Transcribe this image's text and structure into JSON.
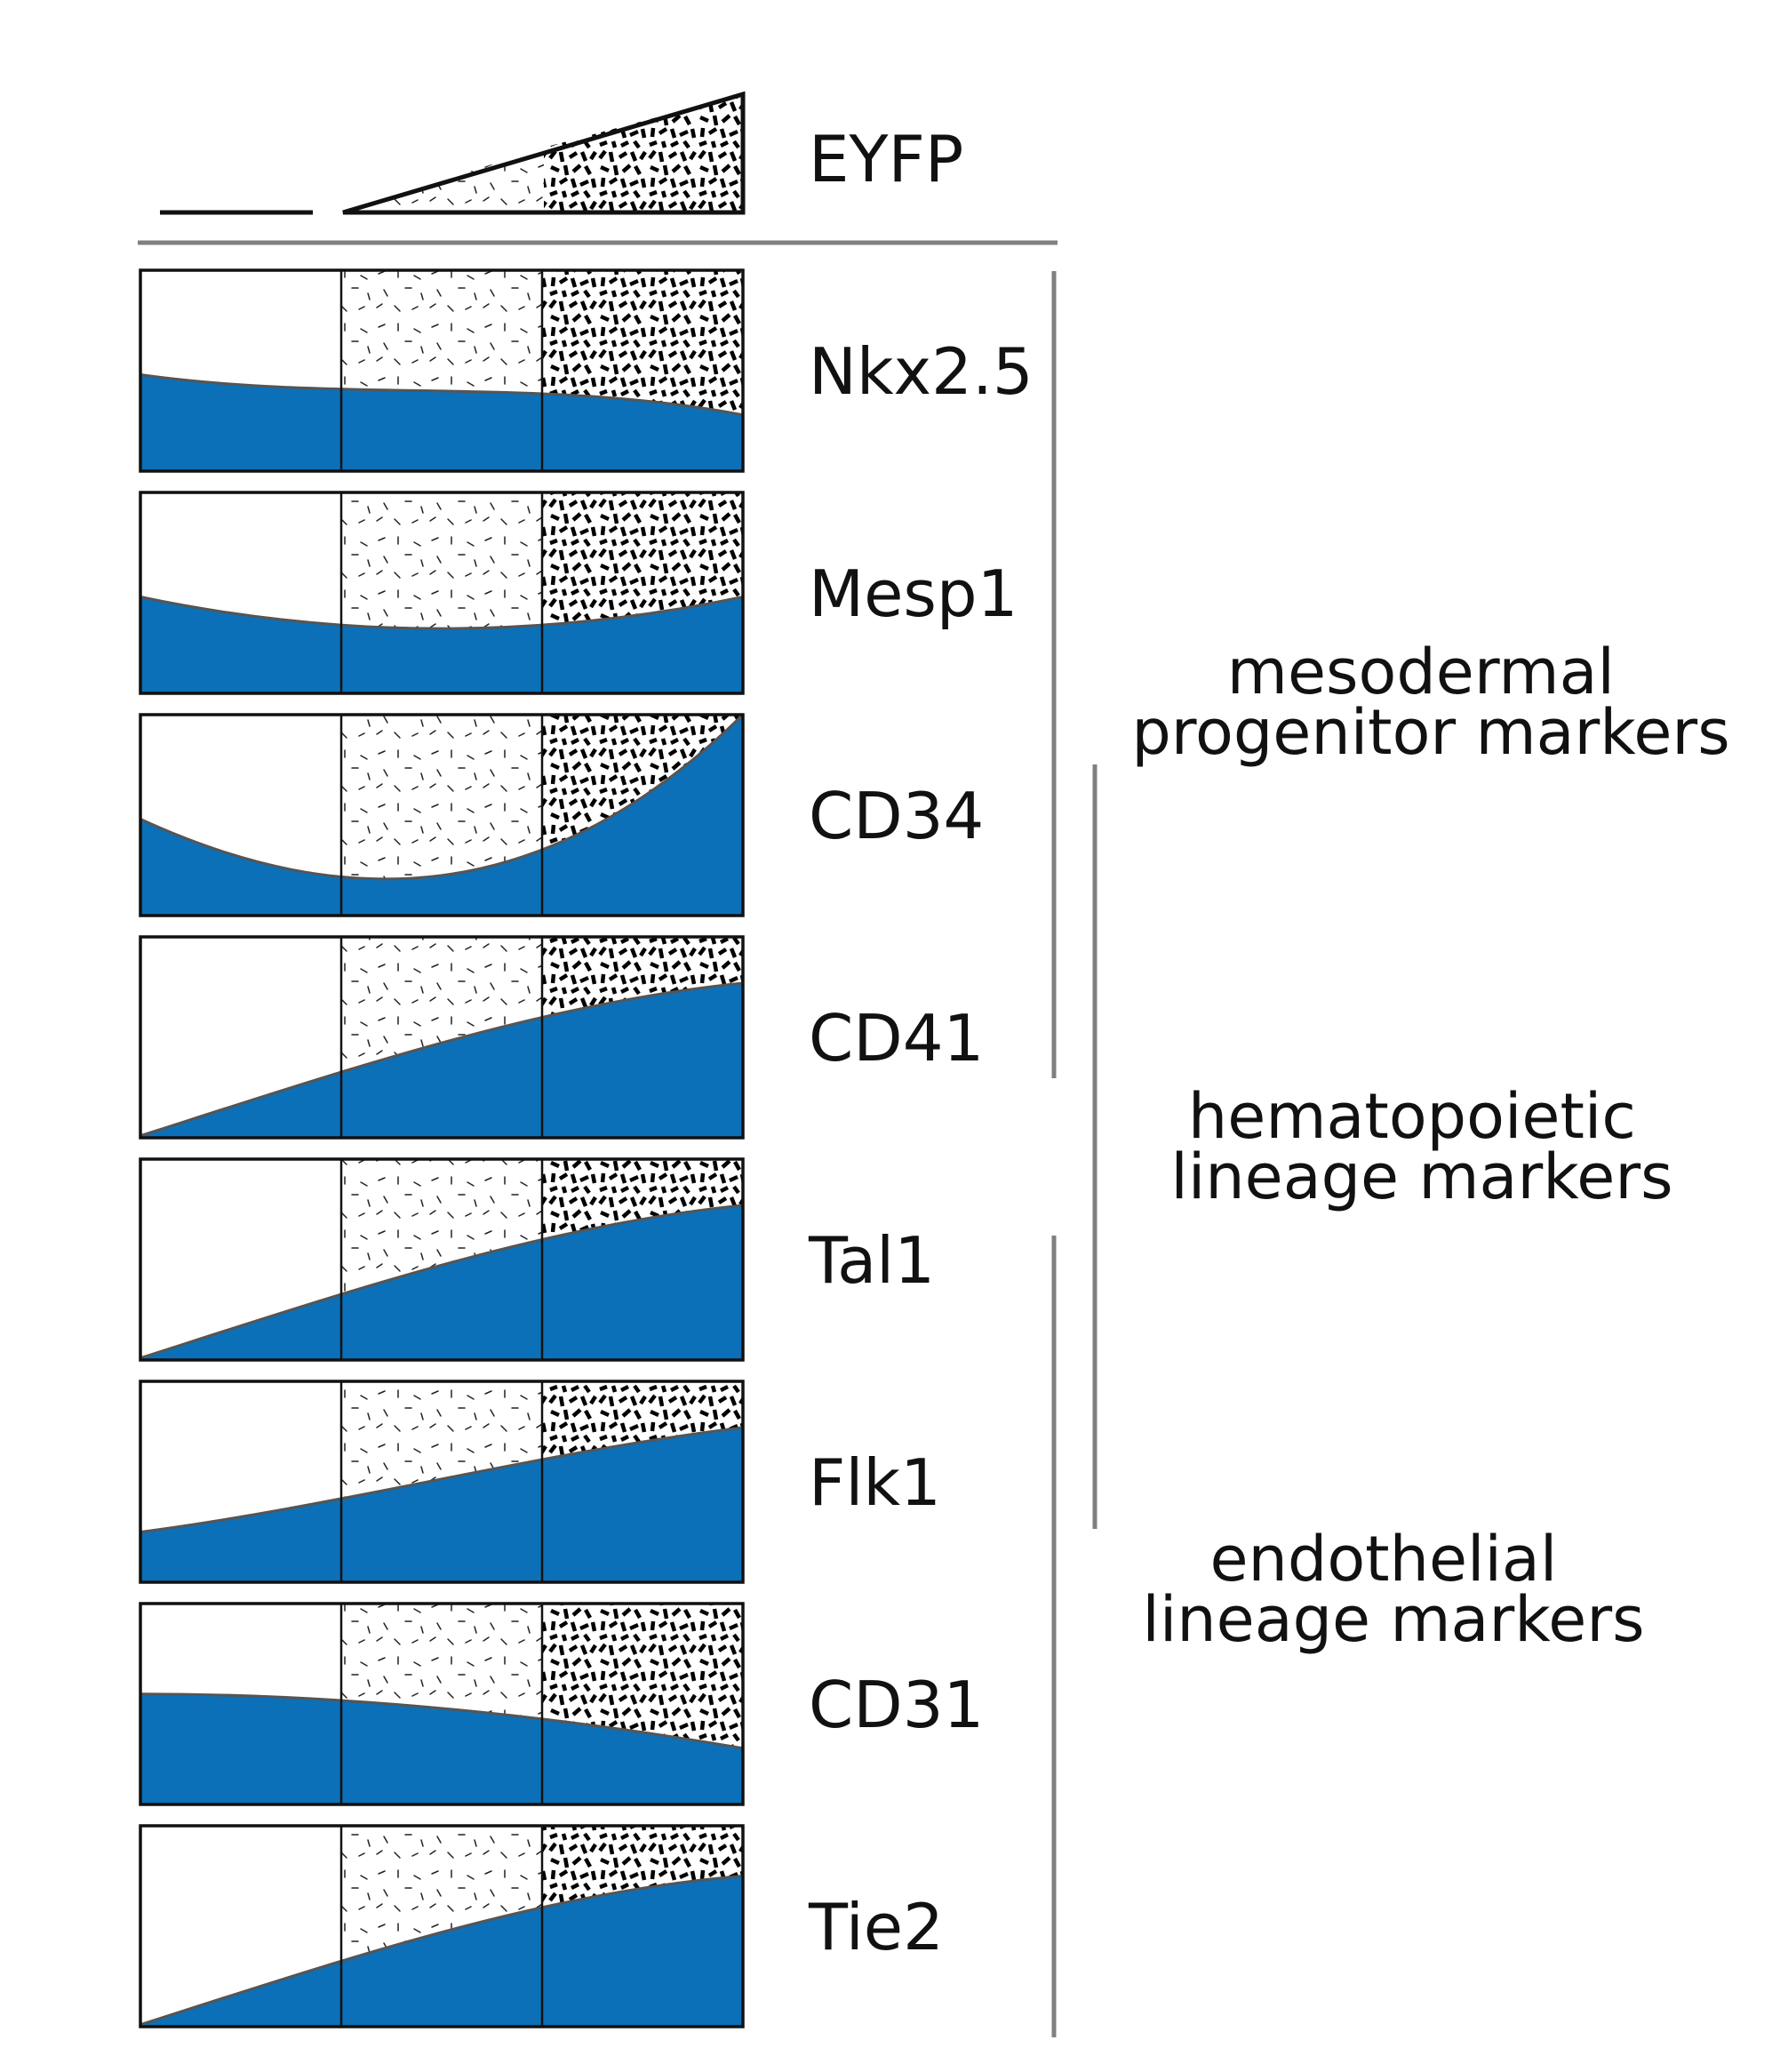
{
  "legend": {
    "label": "EYFP",
    "levels": [
      "negative",
      "low",
      "high"
    ]
  },
  "markers": [
    {
      "name": "Nkx2.5",
      "curve": [
        0.52,
        0.66,
        0.53,
        0.72
      ]
    },
    {
      "name": "Mesp1",
      "curve": [
        0.52,
        0.73,
        0.73,
        0.52
      ]
    },
    {
      "name": "CD34",
      "curve": [
        0.52,
        0.98,
        0.98,
        0.0
      ]
    },
    {
      "name": "CD41",
      "curve": [
        0.99,
        0.67,
        0.33,
        0.23
      ]
    },
    {
      "name": "Tal1",
      "curve": [
        0.99,
        0.67,
        0.33,
        0.23
      ]
    },
    {
      "name": "Flk1",
      "curve": [
        0.75,
        0.62,
        0.35,
        0.23
      ]
    },
    {
      "name": "CD31",
      "curve": [
        0.45,
        0.45,
        0.55,
        0.72
      ]
    },
    {
      "name": "Tie2",
      "curve": [
        0.99,
        0.67,
        0.33,
        0.25
      ]
    }
  ],
  "groups": [
    {
      "lines": [
        "mesodermal",
        "progenitor markers"
      ],
      "markers": [
        "Nkx2.5",
        "Mesp1",
        "CD34",
        "CD41"
      ]
    },
    {
      "lines": [
        "hematopoietic",
        "lineage markers"
      ],
      "markers": [
        "CD34",
        "CD41",
        "Tal1",
        "Flk1"
      ]
    },
    {
      "lines": [
        "endothelial",
        "lineage markers"
      ],
      "markers": [
        "Tal1",
        "Flk1",
        "CD31",
        "Tie2"
      ]
    }
  ],
  "colors": {
    "expression_fill": "#0b70b8",
    "curve_edge": "#555555",
    "outline": "#111111",
    "bracket": "#808080"
  }
}
